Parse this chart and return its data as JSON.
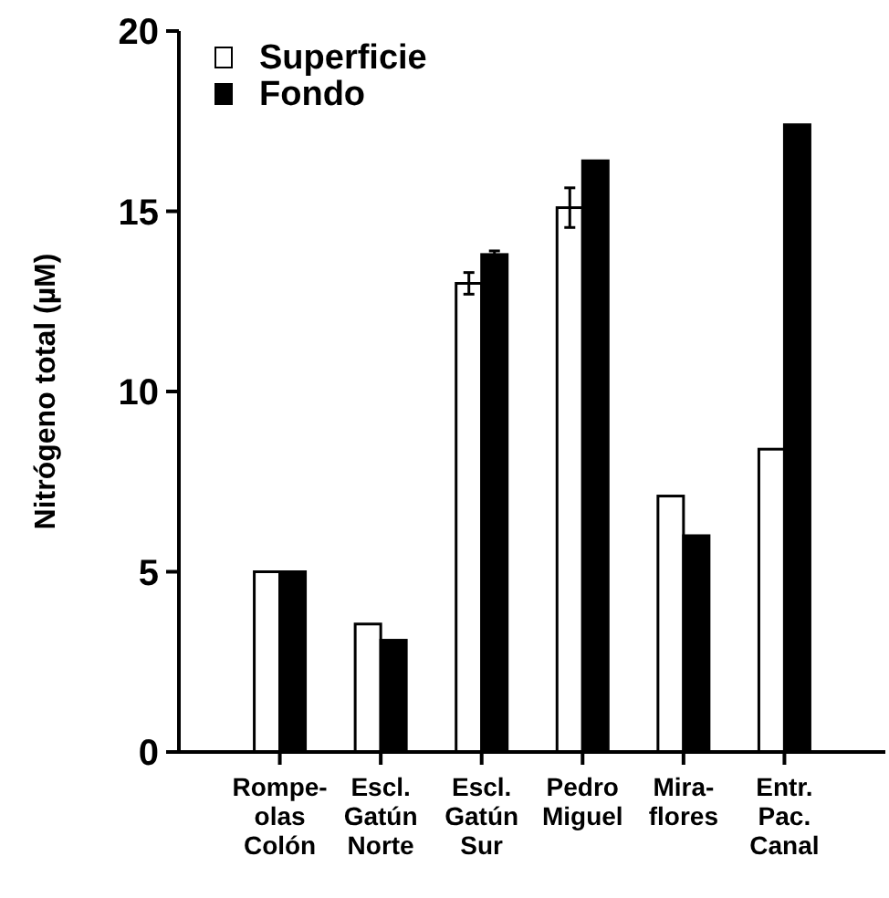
{
  "chart_data": {
    "type": "bar",
    "ylabel": "Nitrógeno total (µM)",
    "categories": [
      "Rompe-\nolas\nColón",
      "Escl.\nGatún\nNorte",
      "Escl.\nGatún\nSur",
      "Pedro\nMiguel",
      "Mira-\nflores",
      "Entr.\nPac.\nCanal"
    ],
    "series": [
      {
        "name": "Superficie",
        "color": "#ffffff",
        "values": [
          5.0,
          3.55,
          13.0,
          15.1,
          7.1,
          8.4
        ],
        "errors": [
          null,
          null,
          0.3,
          0.55,
          null,
          null
        ]
      },
      {
        "name": "Fondo",
        "color": "#000000",
        "values": [
          5.0,
          3.1,
          13.8,
          16.4,
          6.0,
          17.4
        ],
        "errors": [
          null,
          null,
          0.1,
          null,
          null,
          null
        ]
      }
    ],
    "ylim": [
      0,
      20
    ],
    "yticks": [
      0,
      5,
      10,
      15,
      20
    ],
    "legend": "top left"
  }
}
